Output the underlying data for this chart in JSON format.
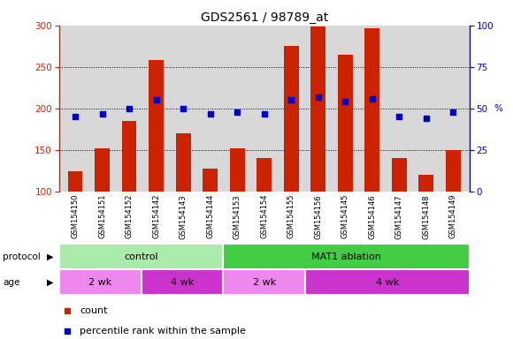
{
  "title": "GDS2561 / 98789_at",
  "samples": [
    "GSM154150",
    "GSM154151",
    "GSM154152",
    "GSM154142",
    "GSM154143",
    "GSM154144",
    "GSM154153",
    "GSM154154",
    "GSM154155",
    "GSM154156",
    "GSM154145",
    "GSM154146",
    "GSM154147",
    "GSM154148",
    "GSM154149"
  ],
  "counts": [
    124,
    152,
    185,
    258,
    170,
    128,
    152,
    140,
    275,
    299,
    265,
    297,
    140,
    120,
    150
  ],
  "percentiles": [
    45,
    47,
    50,
    55,
    50,
    47,
    48,
    47,
    55,
    57,
    54,
    56,
    45,
    44,
    48
  ],
  "count_base": 100,
  "ylim_left": [
    100,
    300
  ],
  "ylim_right": [
    0,
    100
  ],
  "yticks_left": [
    100,
    150,
    200,
    250,
    300
  ],
  "yticks_right": [
    0,
    25,
    50,
    75,
    100
  ],
  "bar_color": "#CC2200",
  "dot_color": "#0000CC",
  "bg_color": "#D8D8D8",
  "xtick_bg_color": "#C8C8C8",
  "protocol_groups": [
    {
      "label": "control",
      "start": 0,
      "end": 6,
      "color": "#AAEAAA"
    },
    {
      "label": "MAT1 ablation",
      "start": 6,
      "end": 15,
      "color": "#44CC44"
    }
  ],
  "age_groups": [
    {
      "label": "2 wk",
      "start": 0,
      "end": 3,
      "color": "#EE88EE"
    },
    {
      "label": "4 wk",
      "start": 3,
      "end": 6,
      "color": "#CC33CC"
    },
    {
      "label": "2 wk",
      "start": 6,
      "end": 9,
      "color": "#EE88EE"
    },
    {
      "label": "4 wk",
      "start": 9,
      "end": 15,
      "color": "#CC33CC"
    }
  ],
  "left_axis_color": "#CC2200",
  "right_axis_color": "#0000CC",
  "fig_width": 5.8,
  "fig_height": 3.84,
  "dpi": 100
}
